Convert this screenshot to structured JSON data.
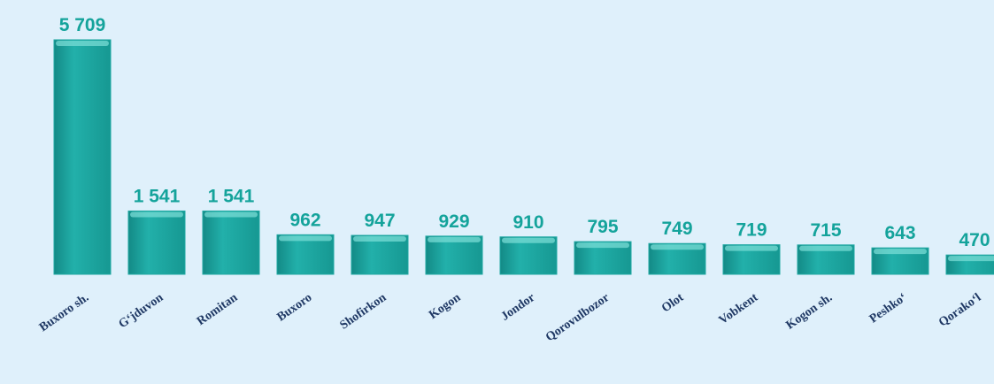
{
  "chart_data": {
    "type": "bar",
    "categories": [
      "Buxoro sh.",
      "G‘jduvon",
      "Romitan",
      "Buxoro",
      "Shofirkon",
      "Kogon",
      "Jondor",
      "Qorovulbozor",
      "Olot",
      "Vobkent",
      "Kogon sh.",
      "Peshko‘",
      "Qorako‘l"
    ],
    "values": [
      5709,
      1541,
      1541,
      962,
      947,
      929,
      910,
      795,
      749,
      719,
      715,
      643,
      470
    ],
    "value_labels": [
      "5 709",
      "1 541",
      "1 541",
      "962",
      "947",
      "929",
      "910",
      "795",
      "749",
      "719",
      "715",
      "643",
      "470"
    ],
    "color": "#1fa8a2"
  }
}
